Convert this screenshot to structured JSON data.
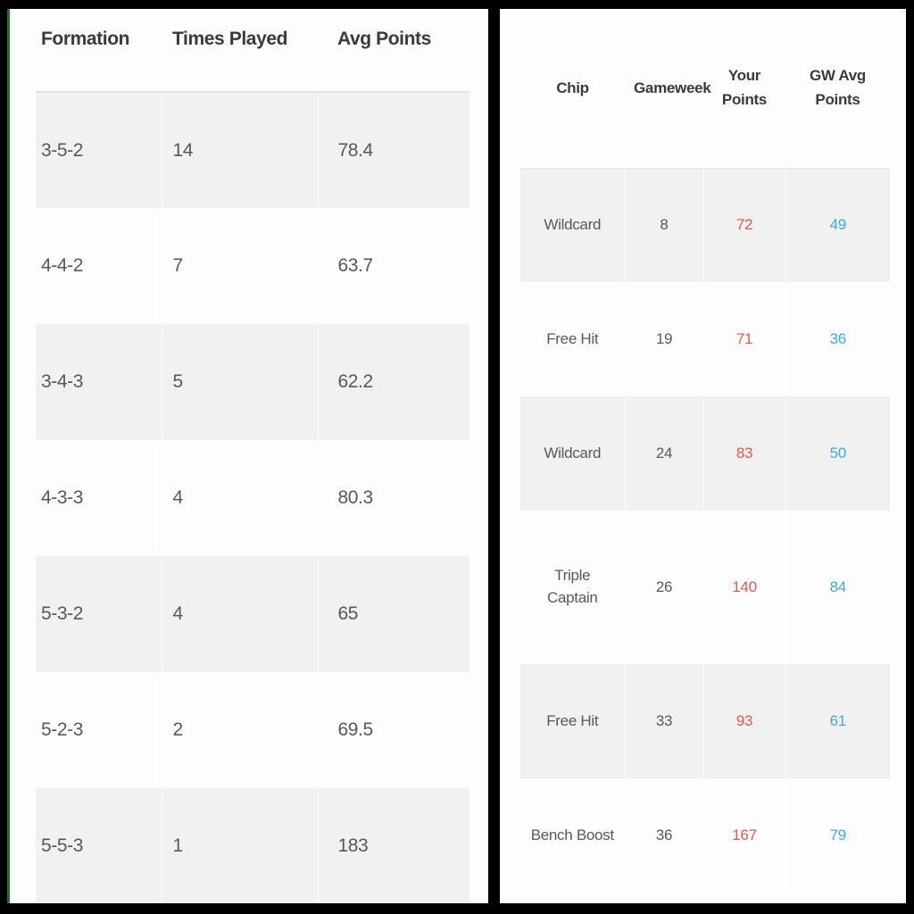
{
  "colors": {
    "frame": "#000000",
    "edge_stripe_green": "#2a6e2a",
    "panel_background": "#fdfdfd",
    "row_stripe": "#f1f1f1",
    "header_text": "#3a3a3a",
    "body_text": "#585858",
    "your_points_red": "#e2574f",
    "gw_avg_points_blue": "#3fa9e5"
  },
  "formation_table": {
    "columns": [
      "Formation",
      "Times Played",
      "Avg Points"
    ],
    "rows": [
      [
        "3-5-2",
        "14",
        "78.4"
      ],
      [
        "4-4-2",
        "7",
        "63.7"
      ],
      [
        "3-4-3",
        "5",
        "62.2"
      ],
      [
        "4-3-3",
        "4",
        "80.3"
      ],
      [
        "5-3-2",
        "4",
        "65"
      ],
      [
        "5-2-3",
        "2",
        "69.5"
      ],
      [
        "5-5-3",
        "1",
        "183"
      ]
    ]
  },
  "chips_table": {
    "columns": [
      "Chip",
      "Gameweek",
      "Your Points",
      "GW Avg Points"
    ],
    "rows": [
      [
        "Wildcard",
        "8",
        "72",
        "49"
      ],
      [
        "Free Hit",
        "19",
        "71",
        "36"
      ],
      [
        "Wildcard",
        "24",
        "83",
        "50"
      ],
      [
        "Triple Captain",
        "26",
        "140",
        "84"
      ],
      [
        "Free Hit",
        "33",
        "93",
        "61"
      ],
      [
        "Bench Boost",
        "36",
        "167",
        "79"
      ]
    ]
  }
}
